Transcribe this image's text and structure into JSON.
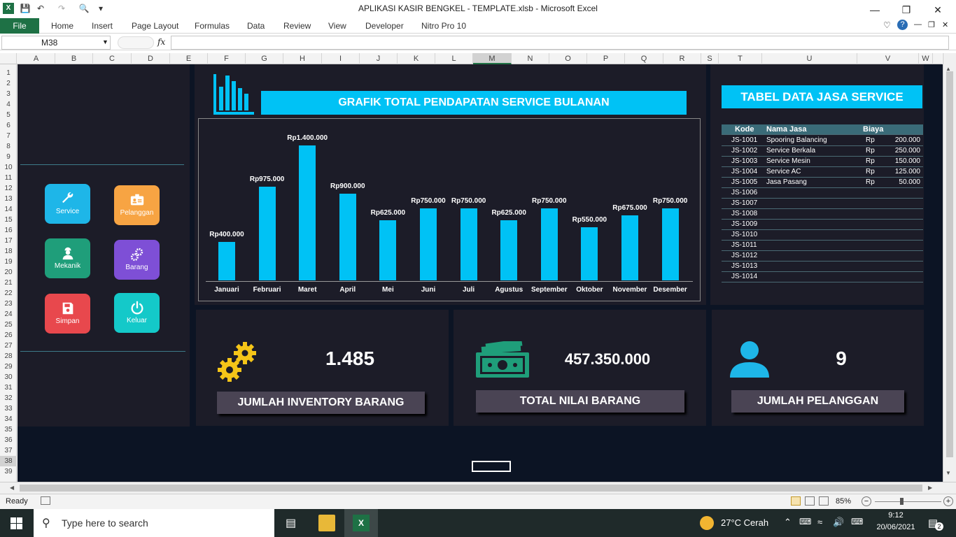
{
  "window": {
    "title": "APLIKASI KASIR BENGKEL - TEMPLATE.xlsb  -  Microsoft Excel"
  },
  "ribbon": {
    "file": "File",
    "tabs": [
      "Home",
      "Insert",
      "Page Layout",
      "Formulas",
      "Data",
      "Review",
      "View",
      "Developer",
      "Nitro Pro 10"
    ]
  },
  "formula_bar": {
    "name_box": "M38",
    "fx": "fx",
    "formula": ""
  },
  "columns": [
    "A",
    "B",
    "C",
    "D",
    "E",
    "F",
    "G",
    "H",
    "I",
    "J",
    "K",
    "L",
    "M",
    "N",
    "O",
    "P",
    "Q",
    "R",
    "S",
    "T",
    "U",
    "V",
    "W"
  ],
  "selected_column": "M",
  "rows": [
    "1",
    "2",
    "3",
    "4",
    "5",
    "6",
    "7",
    "8",
    "9",
    "10",
    "11",
    "12",
    "13",
    "14",
    "15",
    "16",
    "17",
    "18",
    "19",
    "20",
    "21",
    "22",
    "23",
    "24",
    "25",
    "26",
    "27",
    "28",
    "29",
    "30",
    "31",
    "32",
    "33",
    "34",
    "35",
    "36",
    "37",
    "38",
    "39"
  ],
  "selected_row": "38",
  "menu": {
    "service": "Service",
    "pelanggan": "Pelanggan",
    "mekanik": "Mekanik",
    "barang": "Barang",
    "simpan": "Simpan",
    "keluar": "Keluar"
  },
  "chart_title": "GRAFIK TOTAL PENDAPATAN SERVICE BULANAN",
  "chart_data": {
    "type": "bar",
    "title": "",
    "categories": [
      "Januari",
      "Februari",
      "Maret",
      "April",
      "Mei",
      "Juni",
      "Juli",
      "Agustus",
      "September",
      "Oktober",
      "November",
      "Desember"
    ],
    "values": [
      400000,
      975000,
      1400000,
      900000,
      625000,
      750000,
      750000,
      625000,
      750000,
      550000,
      675000,
      750000
    ],
    "labels": [
      "Rp400.000",
      "Rp975.000",
      "Rp1.400.000",
      "Rp900.000",
      "Rp625.000",
      "Rp750.000",
      "Rp750.000",
      "Rp625.000",
      "Rp750.000",
      "Rp550.000",
      "Rp675.000",
      "Rp750.000"
    ],
    "xlabel": "",
    "ylabel": "",
    "color": "#00c2f5",
    "grid": false
  },
  "table": {
    "title": "TABEL DATA JASA SERVICE",
    "headers": {
      "kode": "Kode",
      "nama": "Nama Jasa",
      "biaya": "Biaya"
    },
    "rows": [
      {
        "kode": "JS-1001",
        "nama": "Spooring Balancing",
        "rp": "Rp",
        "biaya": "200.000"
      },
      {
        "kode": "JS-1002",
        "nama": "Service Berkala",
        "rp": "Rp",
        "biaya": "250.000"
      },
      {
        "kode": "JS-1003",
        "nama": "Service Mesin",
        "rp": "Rp",
        "biaya": "150.000"
      },
      {
        "kode": "JS-1004",
        "nama": "Service AC",
        "rp": "Rp",
        "biaya": "125.000"
      },
      {
        "kode": "JS-1005",
        "nama": "Jasa Pasang",
        "rp": "Rp",
        "biaya": "50.000"
      },
      {
        "kode": "JS-1006",
        "nama": "",
        "rp": "",
        "biaya": ""
      },
      {
        "kode": "JS-1007",
        "nama": "",
        "rp": "",
        "biaya": ""
      },
      {
        "kode": "JS-1008",
        "nama": "",
        "rp": "",
        "biaya": ""
      },
      {
        "kode": "JS-1009",
        "nama": "",
        "rp": "",
        "biaya": ""
      },
      {
        "kode": "JS-1010",
        "nama": "",
        "rp": "",
        "biaya": ""
      },
      {
        "kode": "JS-1011",
        "nama": "",
        "rp": "",
        "biaya": ""
      },
      {
        "kode": "JS-1012",
        "nama": "",
        "rp": "",
        "biaya": ""
      },
      {
        "kode": "JS-1013",
        "nama": "",
        "rp": "",
        "biaya": ""
      },
      {
        "kode": "JS-1014",
        "nama": "",
        "rp": "",
        "biaya": ""
      }
    ]
  },
  "kpi": {
    "inventory": {
      "value": "1.485",
      "label": "JUMLAH INVENTORY BARANG"
    },
    "nilai": {
      "value": "457.350.000",
      "label": "TOTAL NILAI BARANG"
    },
    "pelanggan": {
      "value": "9",
      "label": "JUMLAH PELANGGAN"
    }
  },
  "status": {
    "ready": "Ready",
    "zoom": "85%"
  },
  "taskbar": {
    "search_placeholder": "Type here to search",
    "weather": "27°C  Cerah",
    "time": "9:12",
    "date": "20/06/2021",
    "notif": "2"
  },
  "colors": {
    "accent": "#00c2f5",
    "excel_green": "#1e7145",
    "sheet_bg": "#0c1424",
    "panel": "#1c1c28"
  }
}
